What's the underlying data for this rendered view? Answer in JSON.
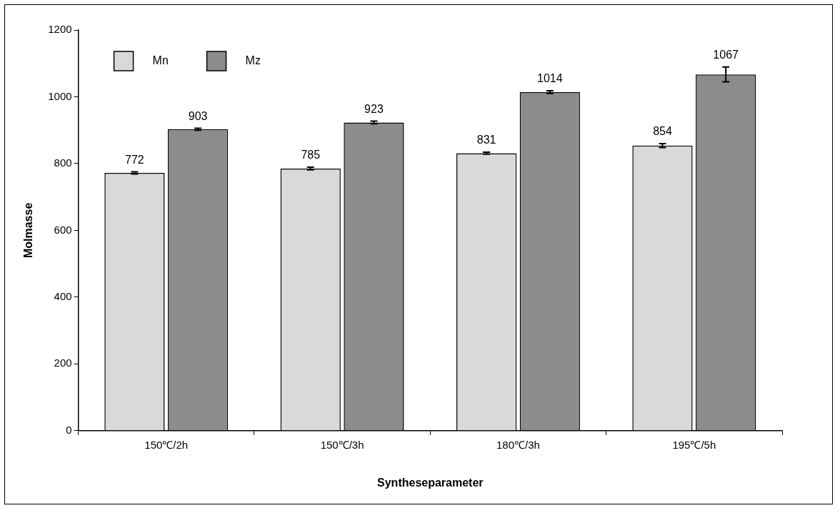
{
  "chart_data": {
    "type": "bar",
    "xlabel": "Syntheseparameter",
    "ylabel": "Molmasse",
    "categories": [
      "150℃/2h",
      "150℃/3h",
      "180℃/3h",
      "195℃/5h"
    ],
    "series": [
      {
        "name": "Mn",
        "color": "#d9d9d9",
        "values": [
          772,
          785,
          831,
          854
        ],
        "errors": [
          3,
          4,
          3,
          6
        ]
      },
      {
        "name": "Mz",
        "color": "#8c8c8c",
        "values": [
          903,
          923,
          1014,
          1067
        ],
        "errors": [
          3,
          4,
          4,
          22
        ]
      }
    ],
    "ylim": [
      0,
      1200
    ],
    "yticks": [
      0,
      200,
      400,
      600,
      800,
      1000,
      1200
    ],
    "grid": false,
    "legend": "top left",
    "data_labels": true
  }
}
